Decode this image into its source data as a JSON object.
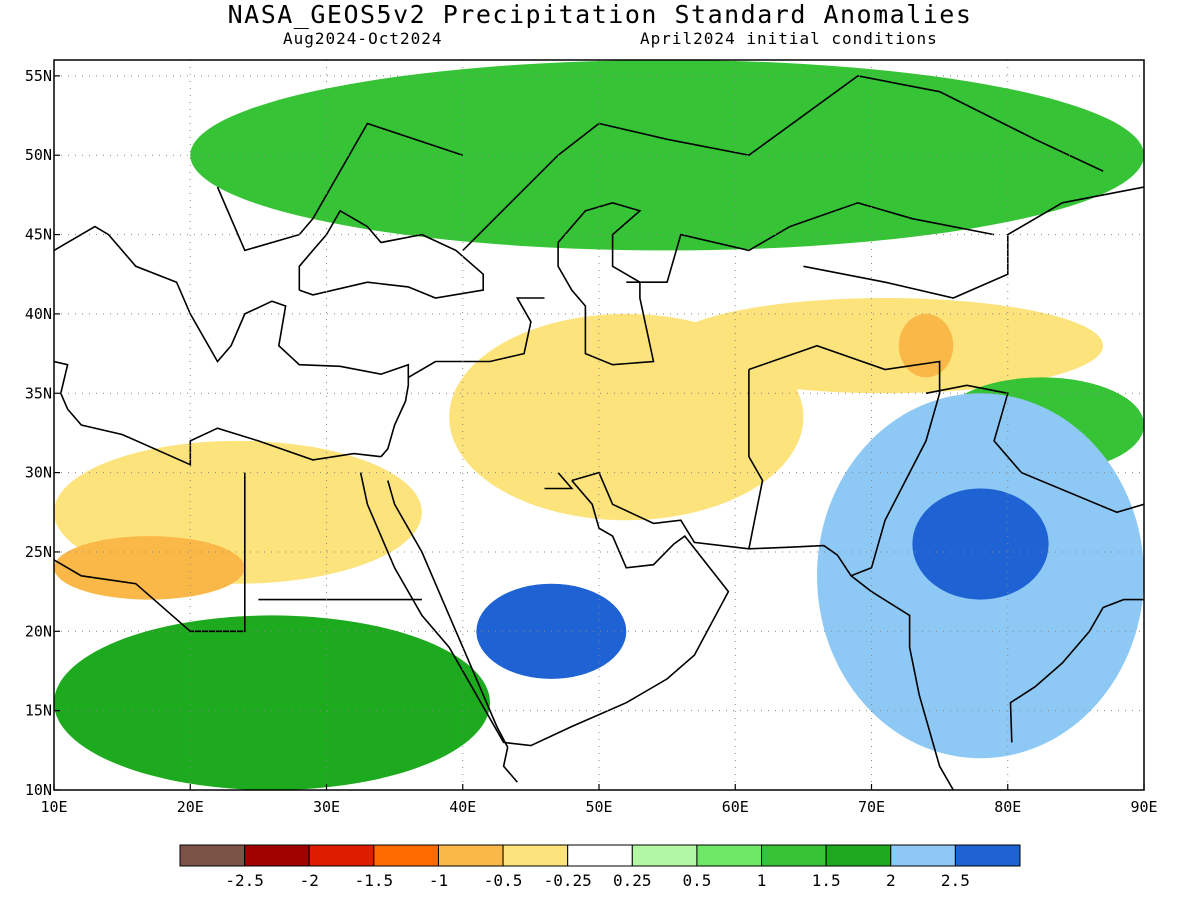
{
  "header": {
    "title": "NASA_GEOS5v2 Precipitation Standard Anomalies",
    "period": "Aug2024-Oct2024",
    "init": "April2024 initial conditions"
  },
  "map": {
    "lon_range": [
      10,
      90
    ],
    "lat_range": [
      10,
      56
    ],
    "x_ticks": [
      "10E",
      "20E",
      "30E",
      "40E",
      "50E",
      "60E",
      "70E",
      "80E",
      "90E"
    ],
    "y_ticks": [
      "10N",
      "15N",
      "20N",
      "25N",
      "30N",
      "35N",
      "40N",
      "45N",
      "50N",
      "55N"
    ],
    "grid": "dotted"
  },
  "colorbar": {
    "colors": [
      "#7b5447",
      "#a00000",
      "#dd1c00",
      "#ff6a00",
      "#f9b847",
      "#fce37c",
      "#ffffff",
      "#b3f7a4",
      "#6ee866",
      "#36c336",
      "#1eaa1e",
      "#8ec8f5",
      "#1e62d4"
    ],
    "labels": [
      "-2.5",
      "-2",
      "-1.5",
      "-1",
      "-0.5",
      "-0.25",
      "0.25",
      "0.5",
      "1",
      "1.5",
      "2",
      "2.5"
    ]
  },
  "chart_data": {
    "type": "heatmap",
    "title": "NASA_GEOS5v2 Precipitation Standard Anomalies",
    "x_ticks": [
      "10E",
      "20E",
      "30E",
      "40E",
      "50E",
      "60E",
      "70E",
      "80E",
      "90E"
    ],
    "y_ticks": [
      "10N",
      "15N",
      "20N",
      "25N",
      "30N",
      "35N",
      "40N",
      "45N",
      "50N",
      "55N"
    ],
    "xlim": [
      10,
      90
    ],
    "ylim": [
      10,
      56
    ],
    "legend_placement": "bottom",
    "regions": [
      {
        "name": "dry-north-africa",
        "anomaly": -0.5,
        "lon": [
          10,
          37
        ],
        "lat": [
          23,
          32
        ]
      },
      {
        "name": "dry-sahara-core",
        "anomaly": -1,
        "lon": [
          10,
          24
        ],
        "lat": [
          22,
          26
        ]
      },
      {
        "name": "dry-middle-east",
        "anomaly": -0.5,
        "lon": [
          39,
          65
        ],
        "lat": [
          27,
          40
        ]
      },
      {
        "name": "dry-central-asia-belt",
        "anomaly": -0.5,
        "lon": [
          55,
          87
        ],
        "lat": [
          35,
          41
        ]
      },
      {
        "name": "dry-pamir-core",
        "anomaly": -1,
        "lon": [
          72,
          76
        ],
        "lat": [
          36,
          40
        ]
      },
      {
        "name": "wet-sahel",
        "anomaly": 1.5,
        "lon": [
          10,
          42
        ],
        "lat": [
          10,
          21
        ]
      },
      {
        "name": "wet-yemen-saudi",
        "anomaly": 2.5,
        "lon": [
          41,
          52
        ],
        "lat": [
          17,
          23
        ]
      },
      {
        "name": "wet-india",
        "anomaly": 2,
        "lon": [
          66,
          90
        ],
        "lat": [
          12,
          35
        ]
      },
      {
        "name": "wet-india-central",
        "anomaly": 2.5,
        "lon": [
          73,
          83
        ],
        "lat": [
          22,
          29
        ]
      },
      {
        "name": "wet-russia-europe",
        "anomaly": 1,
        "lon": [
          20,
          90
        ],
        "lat": [
          44,
          56
        ]
      },
      {
        "name": "wet-central-asia",
        "anomaly": 1,
        "lon": [
          75,
          90
        ],
        "lat": [
          30,
          36
        ]
      }
    ]
  }
}
